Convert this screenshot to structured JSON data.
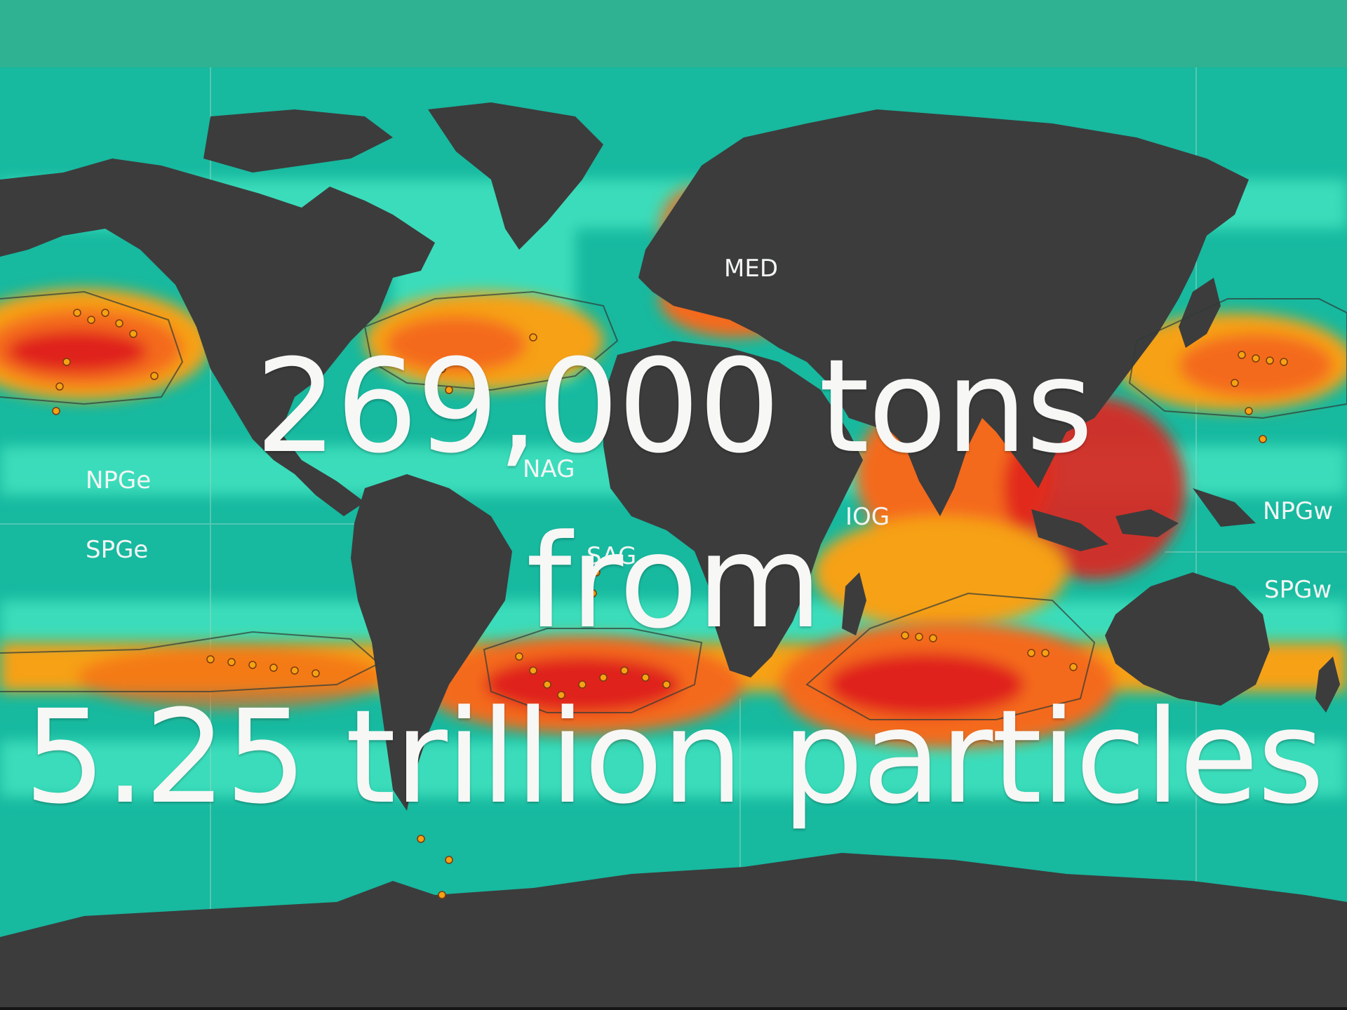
{
  "colors": {
    "header_band": "#2fb292",
    "ocean": "#17b99f",
    "ocean_light": "#43e3c0",
    "land": "#3c3c3c",
    "density_low": "#f6a112",
    "density_mid": "#f46a1b",
    "density_high": "#e0221c",
    "text": "#f7f7f5"
  },
  "map": {
    "regions": {
      "med": "MED",
      "nag": "NAG",
      "iog": "IOG",
      "npge": "NPGe",
      "spge": "SPGe",
      "npgw": "NPGw",
      "spgw": "SPGw",
      "sag": "SAG"
    }
  },
  "headline": {
    "line1": "269,000 tons",
    "line2": "from",
    "line3": "5.25 trillion particles"
  }
}
